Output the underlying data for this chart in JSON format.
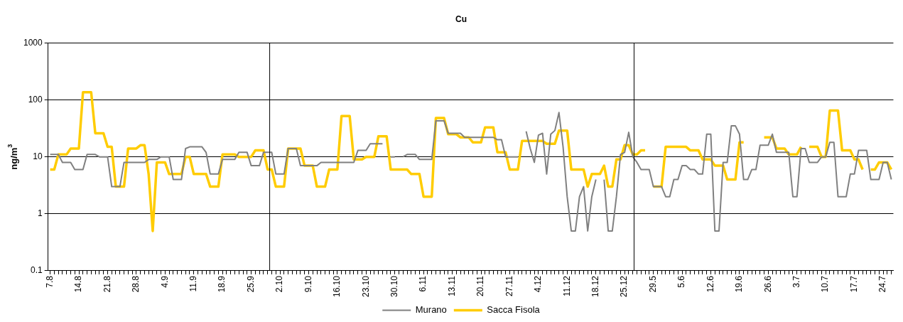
{
  "chart_data": {
    "type": "line",
    "title": "Cu",
    "ylabel": "ng/m$^{3}$",
    "categories": [
      "7.8",
      null,
      null,
      null,
      null,
      null,
      null,
      "14.8",
      null,
      null,
      null,
      null,
      null,
      null,
      "21.8",
      null,
      null,
      null,
      null,
      null,
      null,
      "28.8",
      null,
      null,
      null,
      null,
      null,
      null,
      "4.9",
      null,
      null,
      null,
      null,
      null,
      null,
      "11.9",
      null,
      null,
      null,
      null,
      null,
      null,
      "18.9",
      null,
      null,
      null,
      null,
      null,
      null,
      "25.9",
      null,
      null,
      null,
      null,
      null,
      null,
      "2.10",
      null,
      null,
      null,
      null,
      null,
      null,
      "9.10",
      null,
      null,
      null,
      null,
      null,
      null,
      "16.10",
      null,
      null,
      null,
      null,
      null,
      null,
      "23.10",
      null,
      null,
      null,
      null,
      null,
      null,
      "30.10",
      null,
      null,
      null,
      null,
      null,
      null,
      "6.11",
      null,
      null,
      null,
      null,
      null,
      null,
      "13.11",
      null,
      null,
      null,
      null,
      null,
      null,
      "20.11",
      null,
      null,
      null,
      null,
      null,
      null,
      "27.11",
      null,
      null,
      null,
      null,
      null,
      null,
      "4.12",
      null,
      null,
      null,
      null,
      null,
      null,
      "11.12",
      null,
      null,
      null,
      null,
      null,
      null,
      "18.12",
      null,
      null,
      null,
      null,
      null,
      null,
      "25.12",
      null,
      null,
      null,
      null,
      null,
      null,
      "29.5",
      null,
      null,
      null,
      null,
      null,
      null,
      "5.6",
      null,
      null,
      null,
      null,
      null,
      null,
      "12.6",
      null,
      null,
      null,
      null,
      null,
      null,
      "19.6",
      null,
      null,
      null,
      null,
      null,
      null,
      "26.6",
      null,
      null,
      null,
      null,
      null,
      null,
      "3.7",
      null,
      null,
      null,
      null,
      null,
      null,
      "10.7",
      null,
      null,
      null,
      null,
      null,
      null,
      "17.7",
      null,
      null,
      null,
      null,
      null,
      null,
      "24.7",
      null,
      null
    ],
    "series": [
      {
        "name": "Murano",
        "color": "#808080",
        "values": [
          11,
          11,
          11,
          8,
          8,
          8,
          6,
          6,
          6,
          11,
          11,
          11,
          10,
          10,
          10,
          3,
          3,
          3,
          8,
          8,
          8,
          8,
          8,
          8,
          9,
          9,
          9,
          10,
          10,
          10,
          4,
          4,
          4,
          14,
          15,
          15,
          15,
          15,
          12,
          5,
          5,
          5,
          9,
          9,
          9,
          9,
          12,
          12,
          12,
          7,
          7,
          7,
          12,
          12,
          12,
          5,
          5,
          5,
          14,
          14,
          14,
          7,
          7,
          7,
          7,
          7,
          8,
          8,
          8,
          8,
          8,
          8,
          8,
          8,
          8,
          13,
          13,
          13,
          17,
          17,
          17,
          17,
          null,
          10,
          10,
          null,
          10,
          11,
          11,
          11,
          9,
          9,
          9,
          9,
          43,
          43,
          43,
          26,
          26,
          26,
          26,
          22,
          22,
          22,
          22,
          22,
          22,
          22,
          22,
          20,
          20,
          10,
          10,
          10,
          10,
          null,
          28,
          14,
          8,
          24,
          26,
          5,
          25,
          29,
          60,
          15,
          2,
          0.5,
          0.5,
          2,
          3,
          0.5,
          2,
          4,
          null,
          4,
          0.5,
          0.5,
          2,
          11,
          12,
          27,
          10,
          8,
          6,
          6,
          6,
          3,
          3,
          3,
          2,
          2,
          4,
          4,
          7,
          7,
          6,
          6,
          5,
          5,
          25,
          25,
          0.5,
          0.5,
          8,
          8,
          35,
          35,
          25,
          4,
          4,
          6,
          6,
          16,
          16,
          16,
          25,
          12,
          12,
          12,
          12,
          2,
          2,
          14,
          14,
          8,
          8,
          8,
          10,
          10,
          18,
          18,
          2,
          2,
          2,
          5,
          5,
          13,
          13,
          13,
          4,
          4,
          4,
          8,
          8,
          4
        ]
      },
      {
        "name": "Sacca Fisola",
        "color": "#ffcc00",
        "values": [
          6,
          6,
          11,
          11,
          11,
          14,
          14,
          14,
          136,
          136,
          136,
          26,
          26,
          26,
          15,
          15,
          3,
          3,
          3,
          14,
          14,
          14,
          16,
          16,
          5,
          0.5,
          8,
          8,
          8,
          5,
          5,
          5,
          5,
          10,
          10,
          5,
          5,
          5,
          5,
          3,
          3,
          3,
          11,
          11,
          11,
          11,
          10,
          10,
          10,
          10,
          13,
          13,
          13,
          6,
          6,
          3,
          3,
          3,
          14,
          14,
          14,
          14,
          7,
          7,
          7,
          3,
          3,
          3,
          6,
          6,
          6,
          52,
          52,
          52,
          9,
          9,
          9,
          10,
          10,
          10,
          23,
          23,
          23,
          6,
          6,
          6,
          6,
          6,
          5,
          5,
          5,
          2,
          2,
          2,
          48,
          48,
          48,
          25,
          25,
          25,
          22,
          22,
          22,
          18,
          18,
          18,
          33,
          33,
          33,
          12,
          12,
          12,
          6,
          6,
          6,
          19,
          19,
          19,
          19,
          19,
          19,
          17,
          17,
          17,
          29,
          29,
          29,
          6,
          6,
          6,
          6,
          3,
          5,
          5,
          5,
          7,
          3,
          3,
          9,
          9,
          16,
          16,
          11,
          11,
          13,
          13,
          null,
          3,
          3,
          3,
          15,
          15,
          15,
          15,
          15,
          15,
          13,
          13,
          13,
          9,
          9,
          9,
          7,
          7,
          7,
          4,
          4,
          4,
          18,
          18,
          null,
          null,
          null,
          null,
          22,
          22,
          22,
          14,
          14,
          14,
          11,
          11,
          11,
          15,
          null,
          15,
          15,
          15,
          10,
          10,
          65,
          65,
          65,
          13,
          13,
          13,
          9,
          9,
          6,
          null,
          6,
          6,
          8,
          8,
          8,
          6
        ]
      }
    ],
    "log": "y",
    "ylim": [
      0.1,
      1000
    ],
    "yticks": [
      0.1,
      1,
      10,
      100,
      1000
    ],
    "grid": "y",
    "legend": "bottom"
  }
}
